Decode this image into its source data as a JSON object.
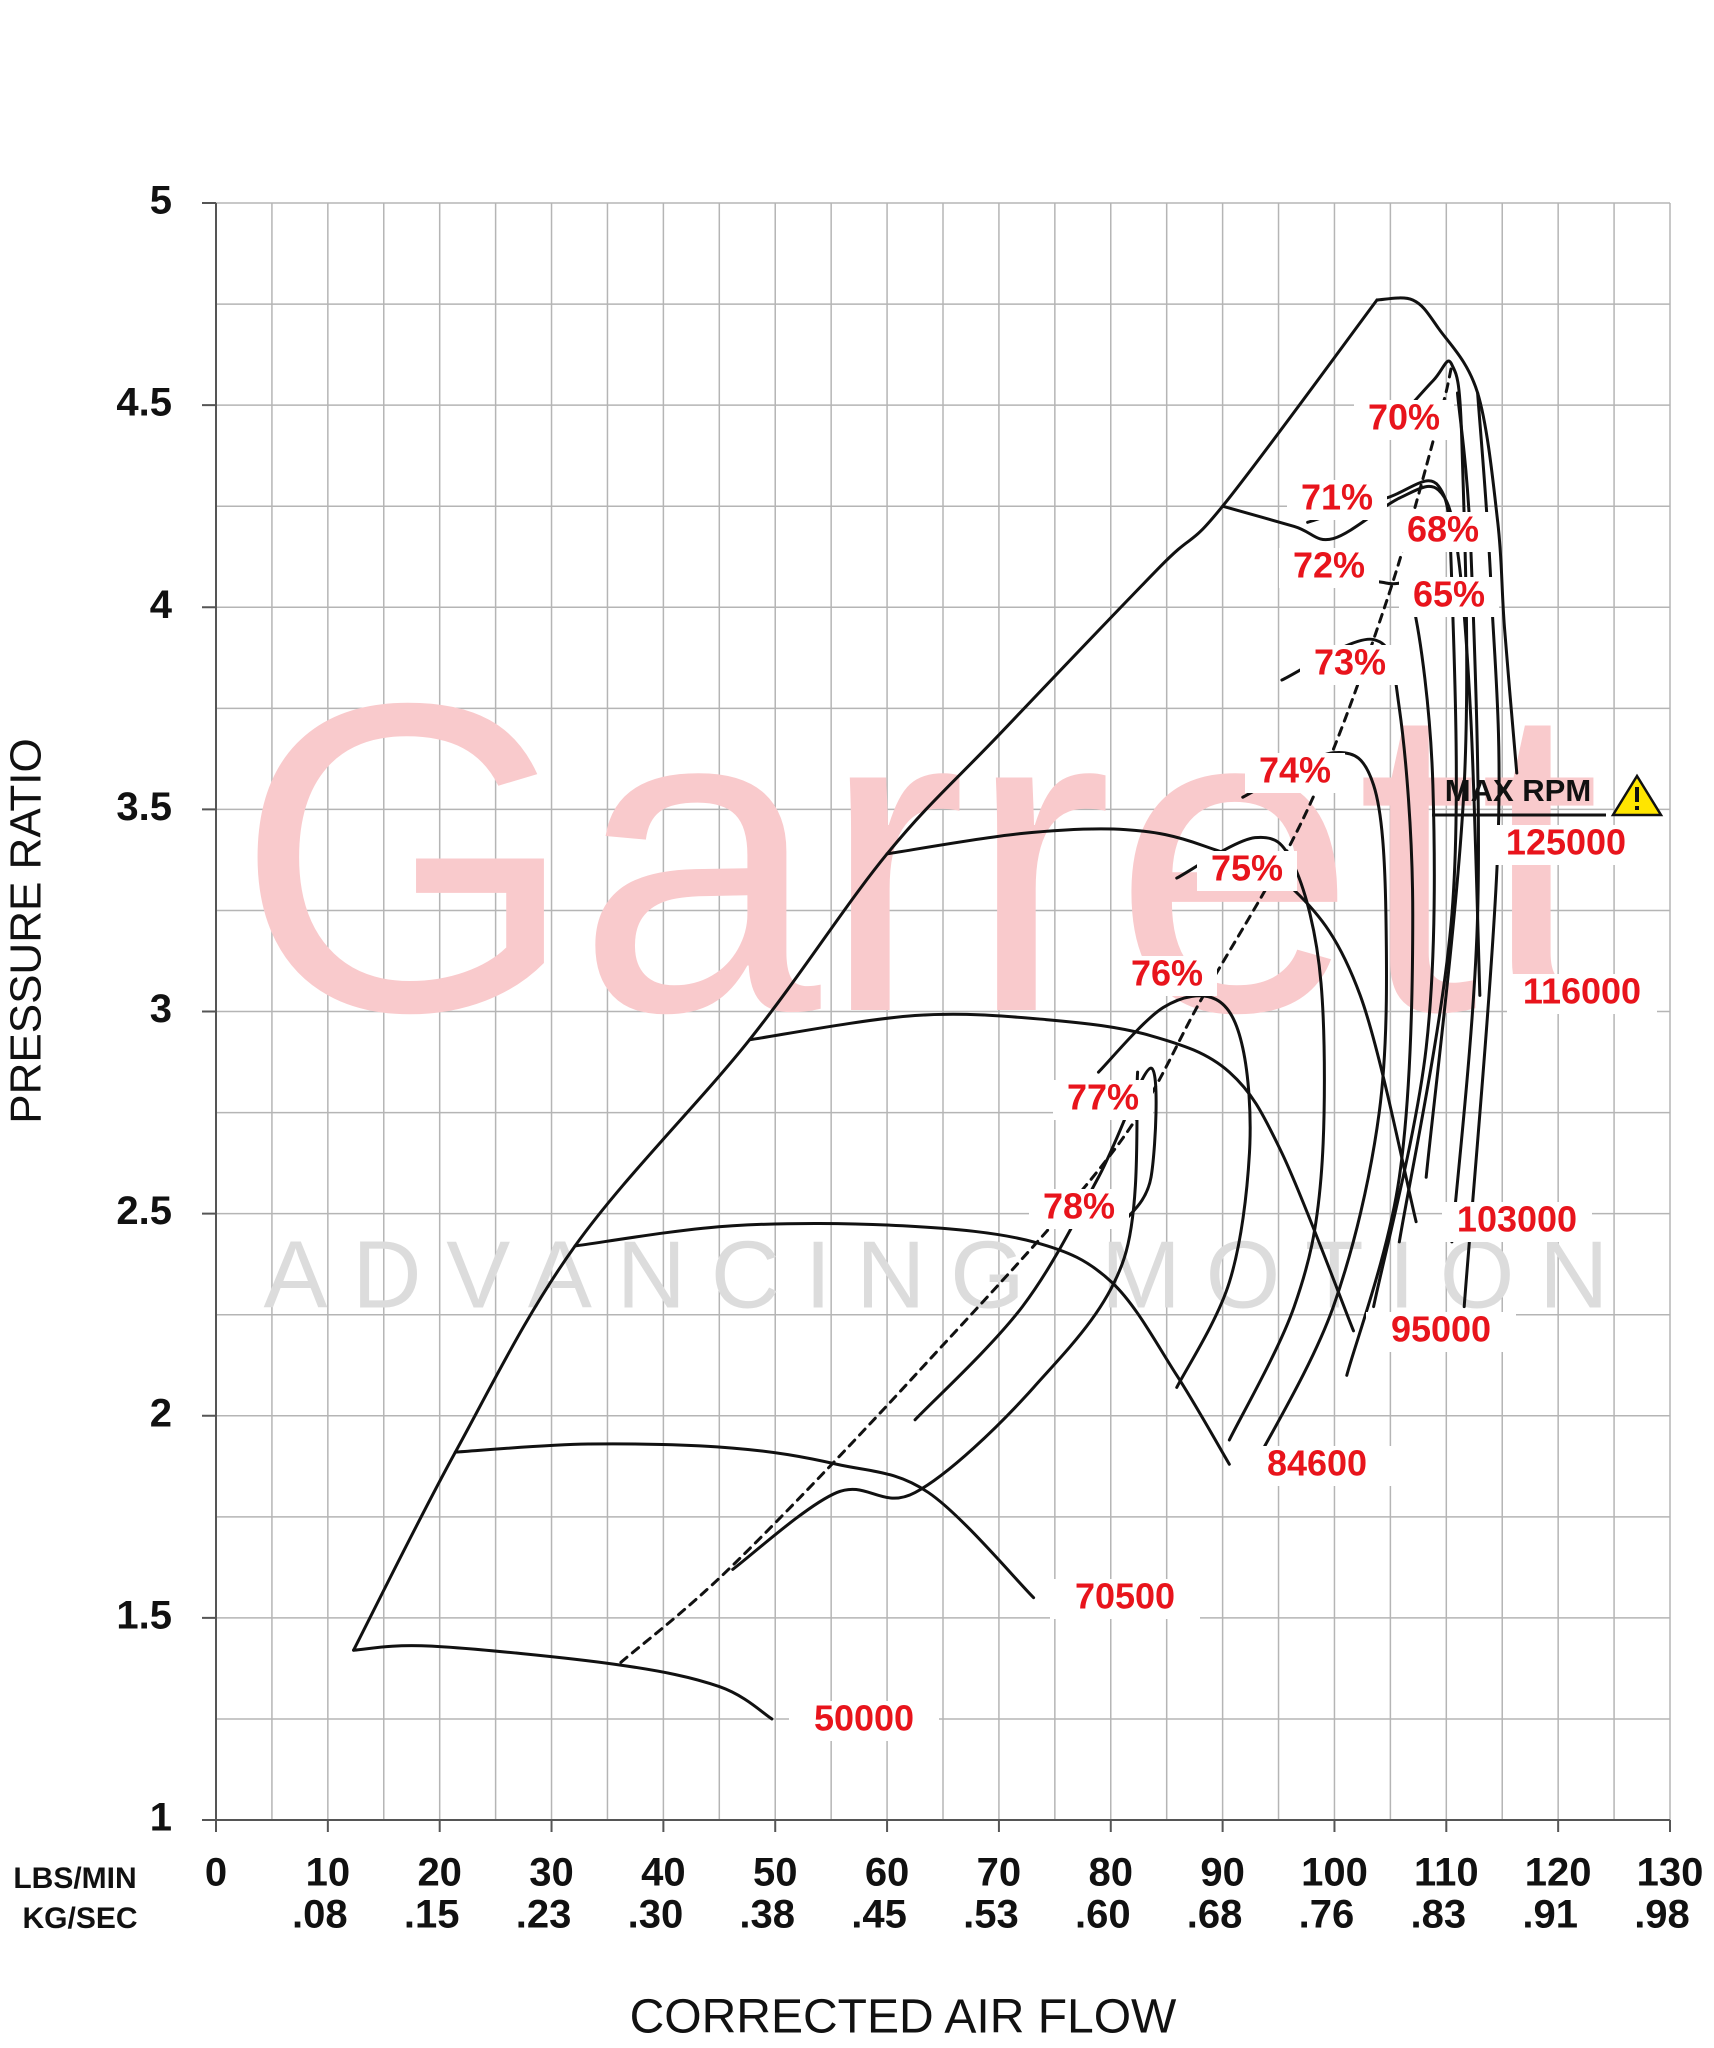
{
  "chart_data": {
    "type": "compressor-map",
    "xlabel": "CORRECTED AIR FLOW",
    "ylabel": "PRESSURE RATIO",
    "x_unit_label": "LBS/MIN",
    "x2_unit_label": "KG/SEC",
    "xlim": [
      0,
      130
    ],
    "ylim": [
      1,
      5
    ],
    "xticks": [
      0,
      10,
      20,
      30,
      40,
      50,
      60,
      70,
      80,
      90,
      100,
      110,
      120,
      130
    ],
    "x2_tick_labels": [
      ".08",
      ".15",
      ".23",
      ".30",
      ".38",
      ".45",
      ".53",
      ".60",
      ".68",
      ".76",
      ".83",
      ".91",
      ".98"
    ],
    "yticks": [
      1,
      1.5,
      2,
      2.5,
      3,
      3.5,
      4,
      4.5,
      5
    ],
    "grid": true,
    "x_minor_step": 5,
    "y_minor_step": 0.25,
    "watermark": "Garrett",
    "watermark_tagline": "ADVANCING MOTION",
    "max_rpm_annotation": "MAX RPM",
    "surge_line": {
      "x": [
        12.3,
        21.4,
        32.1,
        47.7,
        60,
        70.2,
        84.4,
        90,
        103.8
      ],
      "y": [
        1.42,
        1.91,
        2.42,
        2.93,
        3.39,
        3.69,
        4.1,
        4.25,
        4.76
      ]
    },
    "peak_efficiency_line": {
      "x": [
        36.2,
        46.2,
        62.5,
        80.1,
        88.3,
        97.6,
        104.6,
        109.3,
        110.5
      ],
      "y": [
        1.39,
        1.63,
        2.1,
        2.65,
        3.04,
        3.5,
        4.01,
        4.46,
        4.6
      ]
    },
    "speed_lines": [
      {
        "name": "50000",
        "x": [
          12.3,
          19.3,
          35.7,
          45,
          49.7
        ],
        "y": [
          1.42,
          1.43,
          1.385,
          1.33,
          1.25
        ]
      },
      {
        "name": "70500",
        "x": [
          21.4,
          33.3,
          46.2,
          55.5,
          63.7,
          73.1
        ],
        "y": [
          1.91,
          1.93,
          1.92,
          1.88,
          1.81,
          1.55
        ]
      },
      {
        "name": "84600",
        "x": [
          32.1,
          46.2,
          61.4,
          73.1,
          80.1,
          85.9,
          90.6
        ],
        "y": [
          2.42,
          2.47,
          2.47,
          2.43,
          2.33,
          2.1,
          1.88
        ]
      },
      {
        "name": "95000",
        "x": [
          47.7,
          62.5,
          74.2,
          83.6,
          90.6,
          95.3,
          101.7
        ],
        "y": [
          2.93,
          2.99,
          2.98,
          2.94,
          2.85,
          2.65,
          2.21
        ]
      },
      {
        "name": "103000",
        "x": [
          60,
          71.9,
          81.3,
          88.3,
          96.4,
          102.3,
          107.3
        ],
        "y": [
          3.39,
          3.44,
          3.45,
          3.41,
          3.3,
          3.04,
          2.48
        ]
      },
      {
        "name": "116000",
        "x": [
          90,
          96.4,
          99.9,
          105.8,
          109.3,
          111,
          112.2,
          113
        ],
        "y": [
          4.25,
          4.2,
          4.17,
          4.27,
          4.29,
          4.14,
          3.72,
          3.04
        ]
      },
      {
        "name": "125000",
        "x": [
          103.8,
          107,
          109.3,
          112.8,
          114.6,
          115.2,
          116.3
        ],
        "y": [
          4.76,
          4.76,
          4.69,
          4.53,
          4.21,
          3.95,
          3.59
        ]
      }
    ],
    "efficiency_islands": [
      {
        "name": "78%",
        "x": [
          46.2,
          55.5,
          62.5,
          73.1,
          81.2,
          82.4
        ],
        "y": [
          1.62,
          1.81,
          1.81,
          2.07,
          2.39,
          2.85
        ]
      },
      {
        "name": "77%",
        "x": [
          62.5,
          72.1,
          78.9,
          83.6,
          83.6,
          81.2
        ],
        "y": [
          1.99,
          2.27,
          2.59,
          2.86,
          2.59,
          2.48
        ]
      },
      {
        "name": "76%",
        "x": [
          78.9,
          84.7,
          89.4,
          91.8,
          92.4,
          90.6,
          85.9
        ],
        "y": [
          2.85,
          3.01,
          3.03,
          2.91,
          2.65,
          2.33,
          2.07
        ]
      },
      {
        "name": "75%",
        "x": [
          85.9,
          92.9,
          96.4,
          98.8,
          98.8,
          96.4,
          90.6
        ],
        "y": [
          3.33,
          3.43,
          3.36,
          3.07,
          2.59,
          2.27,
          1.94
        ]
      },
      {
        "name": "74%",
        "x": [
          91.8,
          99.9,
          103.5,
          104.6,
          104,
          99.9,
          92.9
        ],
        "y": [
          3.53,
          3.64,
          3.56,
          3.24,
          2.75,
          2.27,
          1.88
        ]
      },
      {
        "name": "73%",
        "x": [
          95.3,
          103.5,
          105.8,
          107,
          105.8,
          101.1
        ],
        "y": [
          3.82,
          3.92,
          3.75,
          3.24,
          2.59,
          2.1
        ]
      },
      {
        "name": "72%",
        "x": [
          95.3,
          104.6,
          107,
          108.8,
          108.2,
          103.5
        ],
        "y": [
          4.08,
          4.06,
          4.01,
          3.56,
          2.91,
          2.27
        ]
      },
      {
        "name": "71%",
        "x": [
          97.6,
          104.6,
          109.3,
          110.5,
          110.5,
          105.8
        ],
        "y": [
          4.21,
          4.27,
          4.3,
          4.05,
          3.24,
          2.43
        ]
      },
      {
        "name": "70%",
        "x": [
          104.6,
          108.8,
          110.5,
          111.4,
          111.6,
          108.2
        ],
        "y": [
          4.43,
          4.56,
          4.6,
          4.4,
          3.56,
          2.59
        ]
      },
      {
        "name": "68%",
        "x": [
          111,
          112.2,
          112.8,
          110.5
        ],
        "y": [
          4.53,
          4.14,
          3.24,
          2.43
        ]
      },
      {
        "name": "65%",
        "x": [
          112.8,
          114,
          114.6,
          111.6
        ],
        "y": [
          4.53,
          4.05,
          3.4,
          2.27
        ]
      }
    ]
  }
}
